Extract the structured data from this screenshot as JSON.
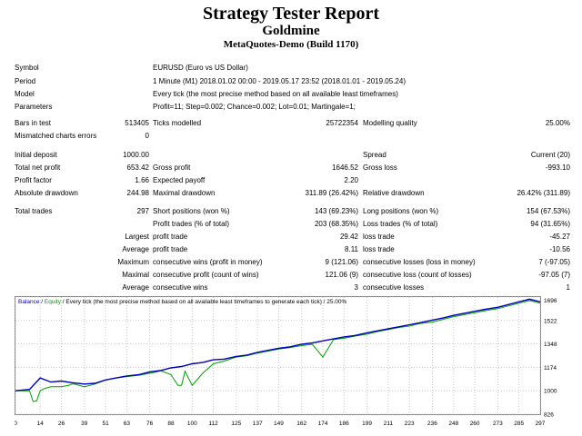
{
  "report": {
    "title": "Strategy Tester Report",
    "expert": "Goldmine",
    "server_build": "MetaQuotes-Demo (Build 1170)"
  },
  "settings": {
    "symbol_label": "Symbol",
    "symbol": "EURUSD (Euro vs US Dollar)",
    "period_label": "Period",
    "period": "1 Minute (M1) 2018.01.02 00:00 - 2019.05.17 23:52 (2018.01.01 - 2019.05.24)",
    "model_label": "Model",
    "model": "Every tick (the most precise method based on all available least timeframes)",
    "parameters_label": "Parameters",
    "parameters": "Profit=11; Step=0.002; Chance=0.002; Lot=0.01; Martingale=1;"
  },
  "stats": {
    "bars_label": "Bars in test",
    "bars": "513405",
    "ticks_label": "Ticks modelled",
    "ticks": "25722354",
    "quality_label": "Modelling quality",
    "quality": "25.00%",
    "mismatch_label": "Mismatched charts errors",
    "mismatch": "0",
    "initial_deposit_label": "Initial deposit",
    "initial_deposit": "1000.00",
    "spread_label": "Spread",
    "spread": "Current (20)",
    "net_profit_label": "Total net profit",
    "net_profit": "653.42",
    "gross_profit_label": "Gross profit",
    "gross_profit": "1646.52",
    "gross_loss_label": "Gross loss",
    "gross_loss": "-993.10",
    "profit_factor_label": "Profit factor",
    "profit_factor": "1.66",
    "expected_payoff_label": "Expected payoff",
    "expected_payoff": "2.20",
    "abs_drawdown_label": "Absolute drawdown",
    "abs_drawdown": "244.98",
    "max_drawdown_label": "Maximal drawdown",
    "max_drawdown": "311.89 (26.42%)",
    "rel_drawdown_label": "Relative drawdown",
    "rel_drawdown": "26.42% (311.89)",
    "total_trades_label": "Total trades",
    "total_trades": "297",
    "short_label": "Short positions (won %)",
    "short": "143 (69.23%)",
    "long_label": "Long positions (won %)",
    "long": "154 (67.53%)",
    "profit_trades_label": "Profit trades (% of total)",
    "profit_trades": "203 (68.35%)",
    "loss_trades_label": "Loss trades (% of total)",
    "loss_trades": "94 (31.65%)",
    "largest_label": "Largest",
    "largest_profit_label": "profit trade",
    "largest_profit": "29.42",
    "largest_loss_label": "loss trade",
    "largest_loss": "-45.27",
    "average_label": "Average",
    "average_profit_label": "profit trade",
    "average_profit": "8.11",
    "average_loss_label": "loss trade",
    "average_loss": "-10.56",
    "maximum_label": "Maximum",
    "max_cons_wins_label": "consecutive wins (profit in money)",
    "max_cons_wins": "9 (121.06)",
    "max_cons_losses_label": "consecutive losses (loss in money)",
    "max_cons_losses": "7 (-97.05)",
    "maximal_label": "Maximal",
    "maximal_cons_profit_label": "consecutive profit (count of wins)",
    "maximal_cons_profit": "121.06 (9)",
    "maximal_cons_loss_label": "consecutive loss (count of losses)",
    "maximal_cons_loss": "-97.05 (7)",
    "average2_label": "Average",
    "avg_cons_wins_label": "consecutive wins",
    "avg_cons_wins": "3",
    "avg_cons_losses_label": "consecutive losses",
    "avg_cons_losses": "1"
  },
  "chart_data": {
    "type": "line",
    "legend_balance": "Balance",
    "legend_sep": " / ",
    "legend_equity": "Equity",
    "legend_rest": " / Every tick (the most precise method based on all available least timeframes to generate each tick) / 25.00%",
    "balance_color": "#0000bb",
    "equity_color": "#00a000",
    "x_ticks": [
      "0",
      "14",
      "26",
      "39",
      "51",
      "63",
      "76",
      "88",
      "100",
      "112",
      "125",
      "137",
      "149",
      "162",
      "174",
      "186",
      "199",
      "211",
      "223",
      "236",
      "248",
      "260",
      "273",
      "285",
      "297"
    ],
    "y_ticks": [
      "1696",
      "1522",
      "1348",
      "1174",
      "1000",
      "826"
    ],
    "y_values": [
      1696,
      1522,
      1348,
      1174,
      1000,
      826
    ],
    "ylim": [
      826,
      1696
    ],
    "xlim": [
      0,
      297
    ],
    "series": [
      {
        "name": "Balance",
        "x": [
          0,
          8,
          14,
          20,
          26,
          32,
          39,
          45,
          51,
          57,
          63,
          70,
          76,
          82,
          88,
          94,
          100,
          106,
          112,
          118,
          125,
          131,
          137,
          143,
          149,
          155,
          162,
          168,
          174,
          180,
          186,
          192,
          199,
          205,
          211,
          217,
          223,
          229,
          236,
          242,
          248,
          254,
          260,
          266,
          273,
          279,
          285,
          291,
          297
        ],
        "y": [
          1000,
          1010,
          1095,
          1065,
          1072,
          1060,
          1050,
          1055,
          1080,
          1095,
          1110,
          1120,
          1140,
          1150,
          1170,
          1180,
          1200,
          1210,
          1230,
          1235,
          1255,
          1265,
          1285,
          1300,
          1315,
          1325,
          1345,
          1355,
          1370,
          1385,
          1400,
          1410,
          1430,
          1445,
          1460,
          1475,
          1490,
          1505,
          1525,
          1540,
          1560,
          1575,
          1590,
          1605,
          1620,
          1640,
          1660,
          1680,
          1660
        ]
      },
      {
        "name": "Equity",
        "x": [
          0,
          8,
          10,
          12,
          14,
          16,
          20,
          26,
          30,
          32,
          34,
          39,
          45,
          51,
          57,
          63,
          70,
          76,
          80,
          82,
          88,
          92,
          94,
          96,
          100,
          106,
          112,
          118,
          125,
          131,
          137,
          143,
          149,
          155,
          162,
          168,
          174,
          180,
          186,
          192,
          199,
          205,
          211,
          217,
          223,
          229,
          236,
          242,
          248,
          254,
          260,
          266,
          273,
          279,
          285,
          291,
          297
        ],
        "y": [
          1000,
          1000,
          920,
          925,
          1000,
          1015,
          1030,
          1030,
          1040,
          1050,
          1048,
          1030,
          1050,
          1080,
          1095,
          1105,
          1115,
          1130,
          1140,
          1150,
          1120,
          1040,
          1040,
          1145,
          1040,
          1130,
          1200,
          1220,
          1250,
          1260,
          1280,
          1295,
          1310,
          1320,
          1335,
          1345,
          1250,
          1380,
          1390,
          1405,
          1420,
          1440,
          1455,
          1470,
          1480,
          1500,
          1510,
          1530,
          1550,
          1565,
          1580,
          1595,
          1610,
          1630,
          1650,
          1670,
          1650
        ]
      }
    ]
  }
}
